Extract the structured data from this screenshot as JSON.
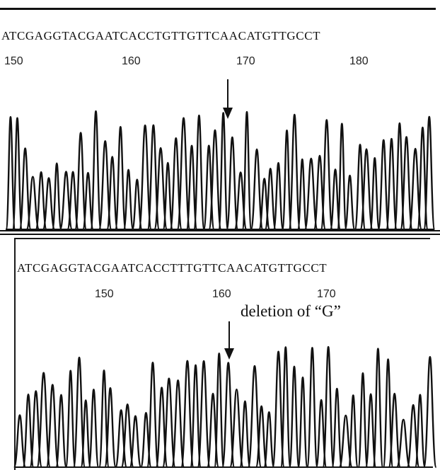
{
  "top_panel": {
    "sequence": "ATCGAGGTACGAATCACCTGTTGTTCAACATGTTGCCT",
    "position_labels": [
      "150",
      "160",
      "170",
      "180"
    ]
  },
  "bottom_panel": {
    "sequence": "ATCGAGGTACGAATCACCTTTGTTCAACATGTTGCCT",
    "position_labels": [
      "150",
      "160",
      "170"
    ],
    "annotation": "deletion of “G”"
  },
  "colors": {
    "ink": "#111111",
    "background": "#ffffff"
  }
}
